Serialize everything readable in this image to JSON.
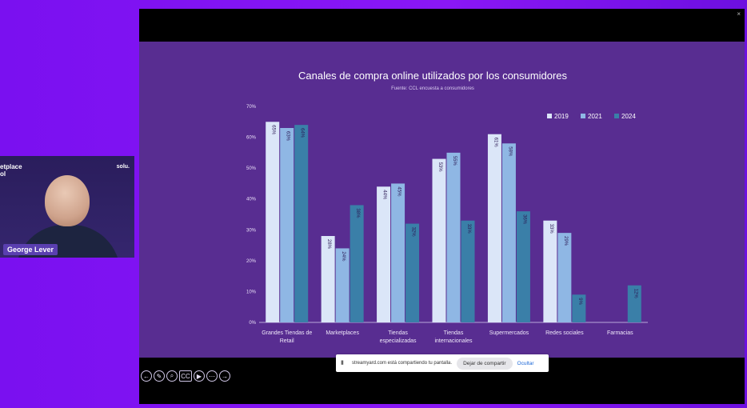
{
  "webcam": {
    "brand_left_line1": "etplace",
    "brand_left_line2": "ol",
    "brand_right": "solu.",
    "participant_name": "George Lever"
  },
  "frame": {
    "close_glyph": "×"
  },
  "controls": [
    {
      "name": "previous-slide-icon",
      "glyph": "←"
    },
    {
      "name": "pen-icon",
      "glyph": "✎"
    },
    {
      "name": "zoom-icon",
      "glyph": "⌕"
    },
    {
      "name": "captions-icon",
      "glyph": "CC"
    },
    {
      "name": "camera-icon",
      "glyph": "▶"
    },
    {
      "name": "more-options-icon",
      "glyph": "⋯"
    },
    {
      "name": "next-slide-icon",
      "glyph": "→"
    }
  ],
  "share_bar": {
    "message": "streamyard.com está compartiendo tu pantalla.",
    "stop_label": "Dejar de compartir",
    "hide_label": "Ocultar"
  },
  "colors": {
    "slide_bg": "#582d91",
    "series": [
      "#dbe6f8",
      "#8fb7e4",
      "#3a7fa8"
    ]
  },
  "chart_data": {
    "type": "bar",
    "title": "Canales de compra online utilizados por los consumidores",
    "subtitle": "Fuente: CCL encuesta a consumidores",
    "categories": [
      [
        "Grandes Tiendas de",
        "Retail"
      ],
      [
        "Marketplaces"
      ],
      [
        "Tiendas",
        "especializadas"
      ],
      [
        "Tiendas",
        "internacionales"
      ],
      [
        "Supermercados"
      ],
      [
        "Redes sociales"
      ],
      [
        "Farmacias"
      ]
    ],
    "series": [
      {
        "name": "2019",
        "values": [
          65,
          28,
          44,
          53,
          61,
          33,
          null
        ],
        "labels": [
          "65%",
          "28%",
          "44%",
          "53%",
          "61%",
          "33%",
          ""
        ]
      },
      {
        "name": "2021",
        "values": [
          63,
          24,
          45,
          55,
          58,
          29,
          null
        ],
        "labels": [
          "63%",
          "24%",
          "45%",
          "55%",
          "58%",
          "29%",
          ""
        ]
      },
      {
        "name": "2024",
        "values": [
          64,
          38,
          32,
          33,
          36,
          9,
          12
        ],
        "labels": [
          "64%",
          "38%",
          "32%",
          "33%",
          "36%",
          "9%",
          "12%"
        ]
      }
    ],
    "ylim": [
      0,
      70
    ],
    "yticks": [
      "0%",
      "10%",
      "20%",
      "30%",
      "40%",
      "50%",
      "60%",
      "70%"
    ],
    "legend_position": "top-right",
    "grid": false
  }
}
